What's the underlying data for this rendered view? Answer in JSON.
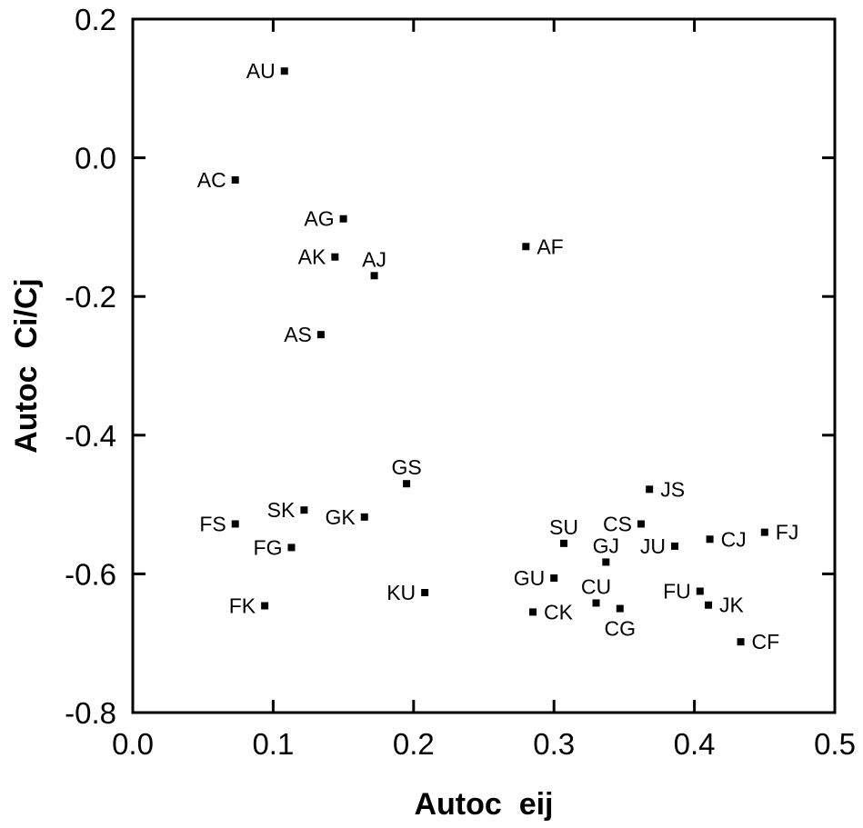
{
  "chart_data": {
    "type": "scatter",
    "title": "",
    "xlabel": "Autoc  eij",
    "ylabel": "Autoc  Ci/Cj",
    "xlim": [
      0.0,
      0.5
    ],
    "ylim": [
      -0.8,
      0.2
    ],
    "grid": false,
    "marker_color": "#000000",
    "x_ticks": [
      {
        "value": 0.0,
        "label": "0.0"
      },
      {
        "value": 0.1,
        "label": "0.1"
      },
      {
        "value": 0.2,
        "label": "0.2"
      },
      {
        "value": 0.3,
        "label": "0.3"
      },
      {
        "value": 0.4,
        "label": "0.4"
      },
      {
        "value": 0.5,
        "label": "0.5"
      }
    ],
    "y_ticks": [
      {
        "value": 0.2,
        "label": "0.2"
      },
      {
        "value": 0.0,
        "label": "0.0"
      },
      {
        "value": -0.2,
        "label": "-0.2"
      },
      {
        "value": -0.4,
        "label": "-0.4"
      },
      {
        "value": -0.6,
        "label": "-0.6"
      },
      {
        "value": -0.8,
        "label": "-0.8"
      }
    ],
    "points": [
      {
        "label": "AU",
        "x": 0.108,
        "y": 0.125,
        "side": "left"
      },
      {
        "label": "AC",
        "x": 0.073,
        "y": -0.032,
        "side": "left"
      },
      {
        "label": "AG",
        "x": 0.15,
        "y": -0.088,
        "side": "left"
      },
      {
        "label": "AK",
        "x": 0.144,
        "y": -0.143,
        "side": "left"
      },
      {
        "label": "AJ",
        "x": 0.172,
        "y": -0.17,
        "side": "above"
      },
      {
        "label": "AF",
        "x": 0.28,
        "y": -0.128,
        "side": "right"
      },
      {
        "label": "AS",
        "x": 0.134,
        "y": -0.255,
        "side": "left"
      },
      {
        "label": "GS",
        "x": 0.195,
        "y": -0.47,
        "side": "above"
      },
      {
        "label": "JS",
        "x": 0.368,
        "y": -0.478,
        "side": "right"
      },
      {
        "label": "SK",
        "x": 0.122,
        "y": -0.508,
        "side": "left"
      },
      {
        "label": "GK",
        "x": 0.165,
        "y": -0.518,
        "side": "left"
      },
      {
        "label": "FS",
        "x": 0.073,
        "y": -0.528,
        "side": "left"
      },
      {
        "label": "CS",
        "x": 0.362,
        "y": -0.528,
        "side": "left"
      },
      {
        "label": "CJ",
        "x": 0.411,
        "y": -0.55,
        "side": "right"
      },
      {
        "label": "FJ",
        "x": 0.45,
        "y": -0.54,
        "side": "right"
      },
      {
        "label": "SU",
        "x": 0.307,
        "y": -0.556,
        "side": "above"
      },
      {
        "label": "FG",
        "x": 0.113,
        "y": -0.562,
        "side": "left"
      },
      {
        "label": "JU",
        "x": 0.386,
        "y": -0.56,
        "side": "left"
      },
      {
        "label": "GJ",
        "x": 0.337,
        "y": -0.583,
        "side": "above"
      },
      {
        "label": "GU",
        "x": 0.3,
        "y": -0.606,
        "side": "left"
      },
      {
        "label": "FU",
        "x": 0.404,
        "y": -0.625,
        "side": "left"
      },
      {
        "label": "KU",
        "x": 0.208,
        "y": -0.627,
        "side": "left"
      },
      {
        "label": "FK",
        "x": 0.094,
        "y": -0.646,
        "side": "left"
      },
      {
        "label": "JK",
        "x": 0.41,
        "y": -0.645,
        "side": "right"
      },
      {
        "label": "CU",
        "x": 0.33,
        "y": -0.642,
        "side": "above"
      },
      {
        "label": "CG",
        "x": 0.347,
        "y": -0.65,
        "side": "below"
      },
      {
        "label": "CK",
        "x": 0.285,
        "y": -0.655,
        "side": "right"
      },
      {
        "label": "CF",
        "x": 0.433,
        "y": -0.698,
        "side": "right"
      }
    ]
  }
}
